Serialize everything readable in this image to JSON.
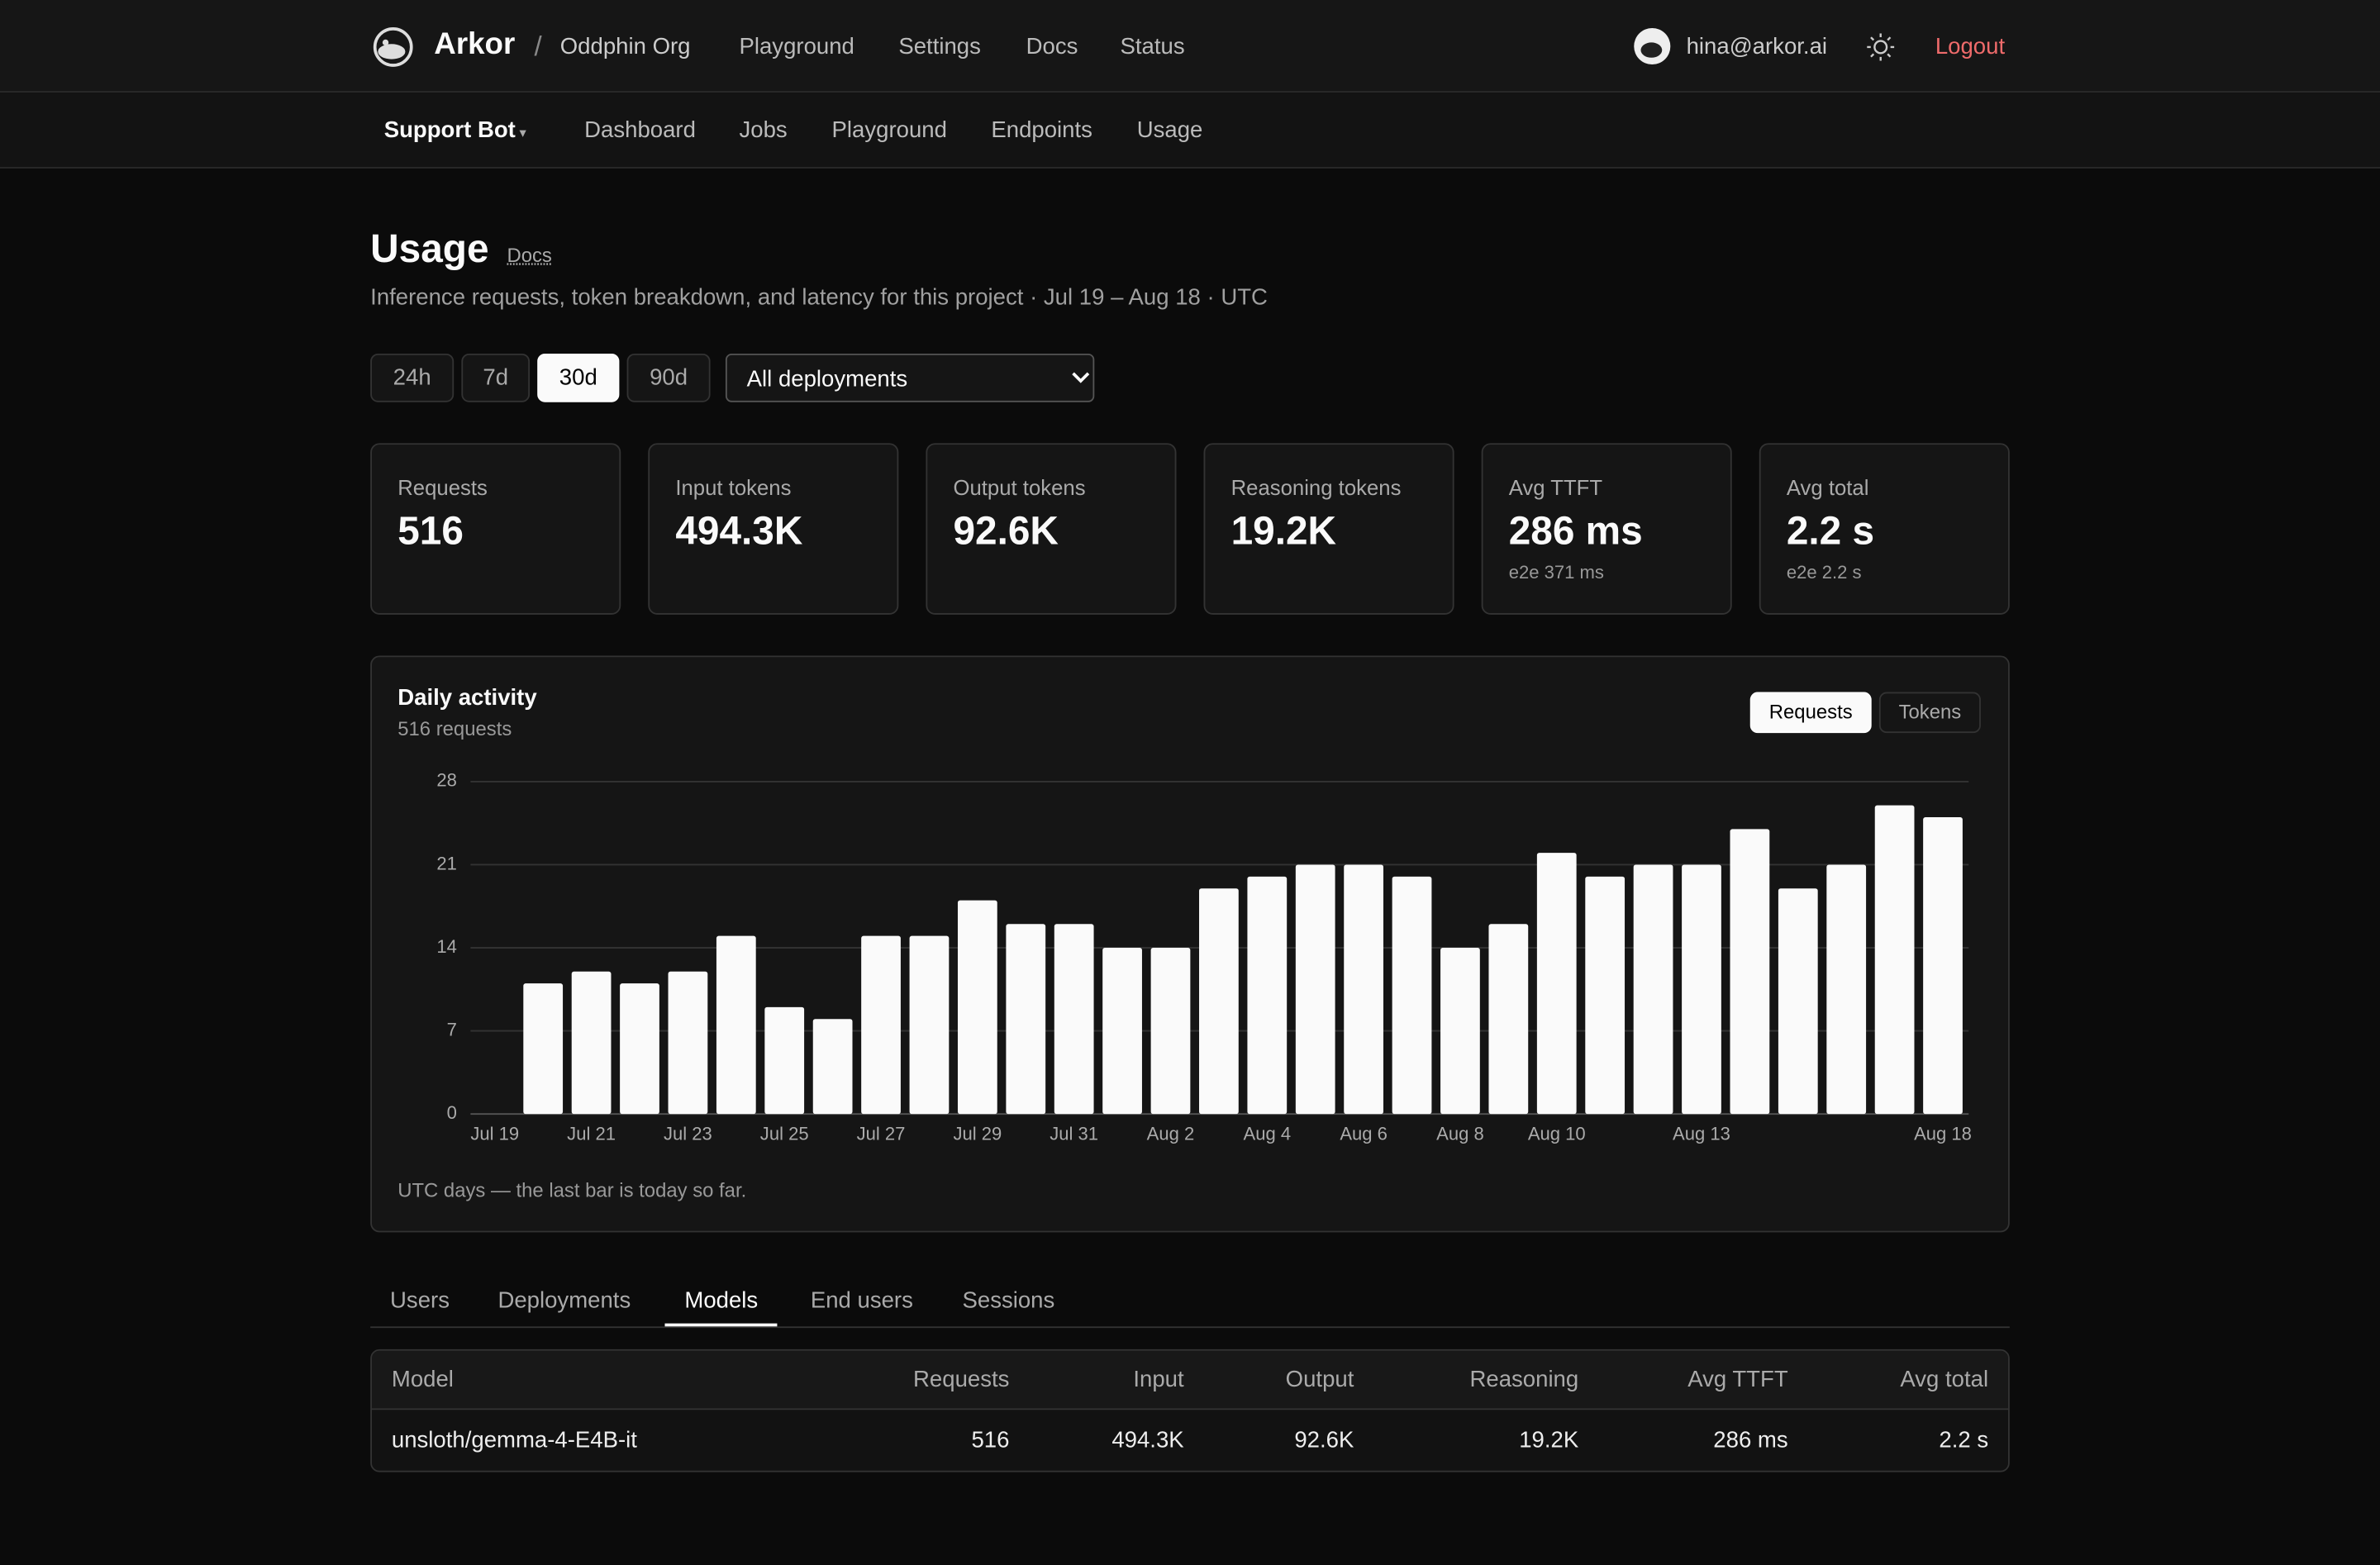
{
  "header": {
    "brand": "Arkor",
    "org": "Oddphin Org",
    "nav": [
      "Playground",
      "Settings",
      "Docs",
      "Status"
    ],
    "user": "hina@arkor.ai",
    "logout": "Logout"
  },
  "subnav": {
    "project": "Support Bot",
    "tabs": [
      "Dashboard",
      "Jobs",
      "Playground",
      "Endpoints",
      "Usage"
    ]
  },
  "page": {
    "title": "Usage",
    "docs": "Docs",
    "subtitle": "Inference requests, token breakdown, and latency for this project · Jul 19 – Aug 18 · UTC",
    "ranges": [
      "24h",
      "7d",
      "30d",
      "90d"
    ],
    "active_range": "30d",
    "deployment_filter": "All deployments"
  },
  "stats": [
    {
      "label": "Requests",
      "value": "516"
    },
    {
      "label": "Input tokens",
      "value": "494.3K"
    },
    {
      "label": "Output tokens",
      "value": "92.6K"
    },
    {
      "label": "Reasoning tokens",
      "value": "19.2K"
    },
    {
      "label": "Avg TTFT",
      "value": "286 ms",
      "sub": "e2e 371 ms"
    },
    {
      "label": "Avg total",
      "value": "2.2 s",
      "sub": "e2e 2.2 s"
    }
  ],
  "chart_data": {
    "type": "bar",
    "title": "Daily activity",
    "subtitle": "516 requests",
    "toggle": [
      "Requests",
      "Tokens"
    ],
    "active_toggle": "Requests",
    "categories": [
      "Jul 19",
      null,
      "Jul 21",
      null,
      "Jul 23",
      null,
      "Jul 25",
      null,
      "Jul 27",
      null,
      "Jul 29",
      null,
      "Jul 31",
      null,
      "Aug 2",
      null,
      "Aug 4",
      null,
      "Aug 6",
      null,
      "Aug 8",
      null,
      "Aug 10",
      null,
      null,
      "Aug 13",
      null,
      null,
      null,
      null,
      "Aug 18"
    ],
    "values": [
      0,
      11,
      12,
      11,
      12,
      15,
      9,
      8,
      15,
      15,
      18,
      16,
      16,
      14,
      14,
      19,
      20,
      21,
      21,
      20,
      14,
      16,
      22,
      20,
      21,
      21,
      24,
      19,
      21,
      26,
      25
    ],
    "color": "#fafafa",
    "ylim": [
      0,
      28
    ],
    "yticks": [
      0,
      7,
      14,
      21,
      28
    ],
    "grid": true,
    "note": "UTC days — the last bar is today so far."
  },
  "tabs": {
    "items": [
      "Users",
      "Deployments",
      "Models",
      "End users",
      "Sessions"
    ],
    "active": "Models"
  },
  "table": {
    "columns": [
      "Model",
      "Requests",
      "Input",
      "Output",
      "Reasoning",
      "Avg TTFT",
      "Avg total"
    ],
    "rows": [
      [
        "unsloth/gemma-4-E4B-it",
        "516",
        "494.3K",
        "92.6K",
        "19.2K",
        "286 ms",
        "2.2 s"
      ]
    ]
  }
}
